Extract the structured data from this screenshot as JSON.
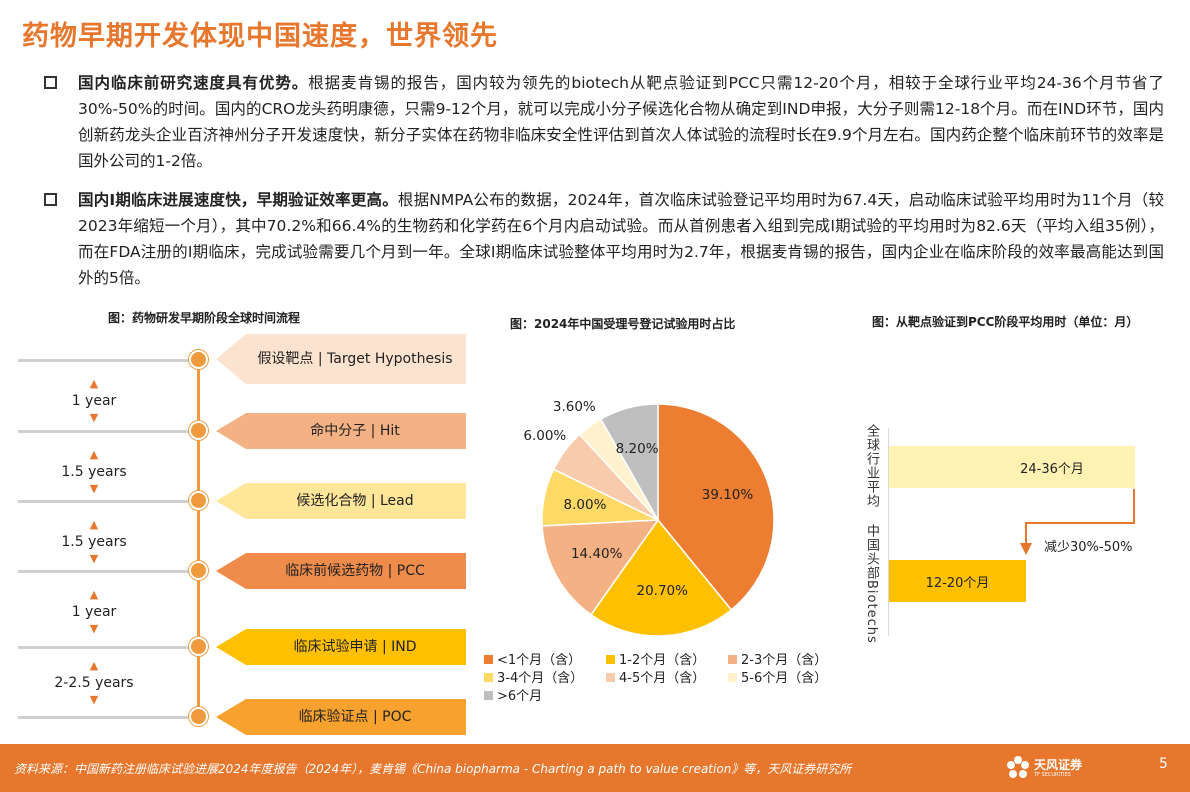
{
  "title": "药物早期开发体现中国速度，世界领先",
  "bullets": [
    {
      "bold": "国内临床前研究速度具有优势。",
      "text": "根据麦肯锡的报告，国内较为领先的biotech从靶点验证到PCC只需12-20个月，相较于全球行业平均24-36个月节省了30%-50%的时间。国内的CRO龙头药明康德，只需9-12个月，就可以完成小分子候选化合物从确定到IND申报，大分子则需12-18个月。而在IND环节，国内创新药龙头企业百济神州分子开发速度快，新分子实体在药物非临床安全性评估到首次人体试验的流程时长在9.9个月左右。国内药企整个临床前环节的效率是国外公司的1-2倍。"
    },
    {
      "bold": "国内I期临床进展速度快，早期验证效率更高。",
      "text": "根据NMPA公布的数据，2024年，首次临床试验登记平均用时为67.4天，启动临床试验平均用时为11个月（较2023年缩短一个月），其中70.2%和66.4%的生物药和化学药在6个月内启动试验。而从首例患者入组到完成I期试验的平均用时为82.6天（平均入组35例），而在FDA注册的I期临床，完成试验需要几个月到一年。全球I期临床试验整体平均用时为2.7年，根据麦肯锡的报告，国内企业在临床阶段的效率最高能达到国外的5倍。"
    }
  ],
  "fig1": {
    "caption": "图：药物研发早期阶段全球时间流程",
    "stages": [
      {
        "label": "假设靶点 | Target Hypothesis",
        "color": "#FCE3CF"
      },
      {
        "label": "命中分子 | Hit",
        "color": "#F4B183"
      },
      {
        "label": "候选化合物 | Lead",
        "color": "#FFE699"
      },
      {
        "label": "临床前候选药物 | PCC",
        "color": "#F08C4B"
      },
      {
        "label": "临床试验申请 | IND",
        "color": "#FFC000"
      },
      {
        "label": "临床验证点 | POC",
        "color": "#F7A12E"
      }
    ],
    "gaps": [
      "1 year",
      "1.5 years",
      "1.5 years",
      "1 year",
      "2-2.5 years"
    ]
  },
  "fig2": {
    "caption": "图：2024年中国受理号登记试验用时占比"
  },
  "fig3": {
    "caption": "图：从靶点验证到PCC阶段平均用时（单位：月）",
    "reduce_label": "减少30%-50%"
  },
  "chart_data": [
    {
      "type": "pie",
      "title": "图：2024年中国受理号登记试验用时占比",
      "categories": [
        "<1个月（含）",
        "1-2个月（含）",
        "2-3个月（含）",
        "3-4个月（含）",
        "4-5个月（含）",
        "5-6个月（含）",
        ">6个月"
      ],
      "values": [
        39.1,
        20.7,
        14.4,
        8.0,
        6.0,
        3.6,
        8.2
      ],
      "data_labels": [
        "39.10%",
        "20.70%",
        "14.40%",
        "8.00%",
        "6.00%",
        "3.60%",
        "8.20%"
      ],
      "colors": [
        "#ED7D31",
        "#FFC000",
        "#F4B183",
        "#FFD966",
        "#F8CBAD",
        "#FFF2CC",
        "#BFBFBF"
      ],
      "legend": "bottom"
    },
    {
      "type": "bar",
      "orientation": "horizontal",
      "title": "图：从靶点验证到PCC阶段平均用时（单位：月）",
      "categories": [
        "全球行业平均",
        "中国头部Biotechs"
      ],
      "ranges": [
        [
          24,
          36
        ],
        [
          12,
          20
        ]
      ],
      "data_labels": [
        "24-36个月",
        "12-20个月"
      ],
      "colors": [
        "#FFF2B3",
        "#FFC000"
      ],
      "annotation": "减少30%-50%"
    }
  ],
  "footer": {
    "source": "资料来源：中国新药注册临床试验进展2024年度报告（2024年），麦肯锡《China biopharma - Charting a path to value creation》等，天风证券研究所",
    "logo": "天风证券",
    "logo_sub": "TF SECURITIES",
    "page": "5"
  }
}
